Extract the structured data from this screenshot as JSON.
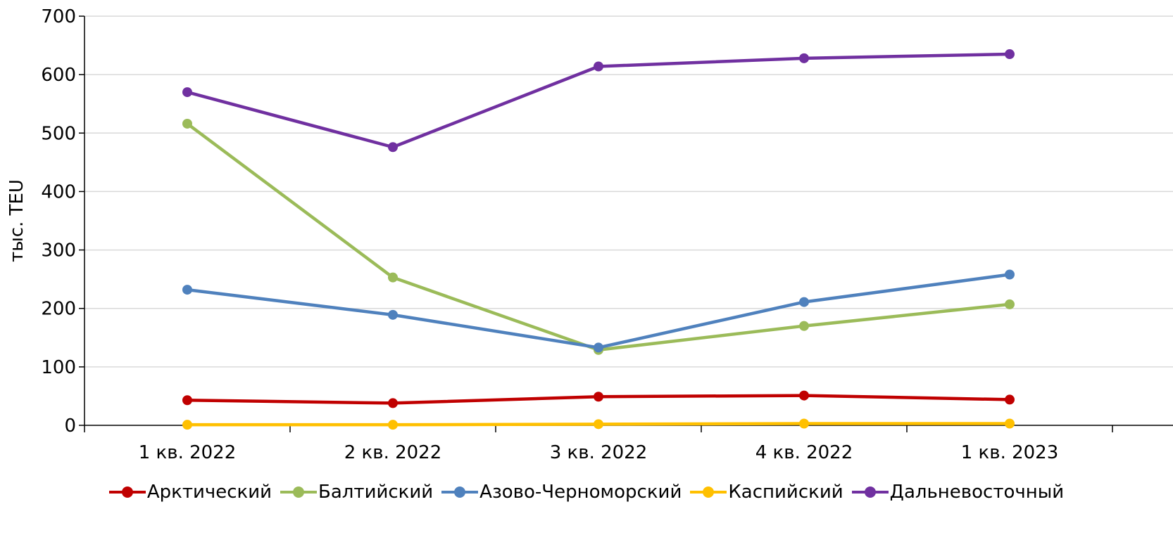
{
  "chart_data": {
    "type": "line",
    "ylabel": "тыс. TEU",
    "ylim": [
      0,
      700
    ],
    "yticks": [
      "0",
      "100",
      "200",
      "300",
      "400",
      "500",
      "600",
      "700"
    ],
    "categories": [
      "1 кв. 2022",
      "2 кв. 2022",
      "3 кв. 2022",
      "4 кв. 2022",
      "1 кв. 2023"
    ],
    "grid": true,
    "legend_position": "bottom",
    "series": [
      {
        "name": "Арктический",
        "color": "#C00000",
        "values": [
          43,
          38,
          49,
          51,
          44
        ]
      },
      {
        "name": "Балтийский",
        "color": "#9BBB59",
        "values": [
          516,
          253,
          129,
          170,
          207
        ]
      },
      {
        "name": "Азово-Черноморский",
        "color": "#4F81BD",
        "values": [
          232,
          189,
          133,
          211,
          258
        ]
      },
      {
        "name": "Каспийский",
        "color": "#FFC000",
        "values": [
          1,
          1,
          2,
          3,
          3
        ]
      },
      {
        "name": "Дальневосточный",
        "color": "#7030A0",
        "values": [
          570,
          476,
          614,
          628,
          635
        ]
      }
    ]
  }
}
